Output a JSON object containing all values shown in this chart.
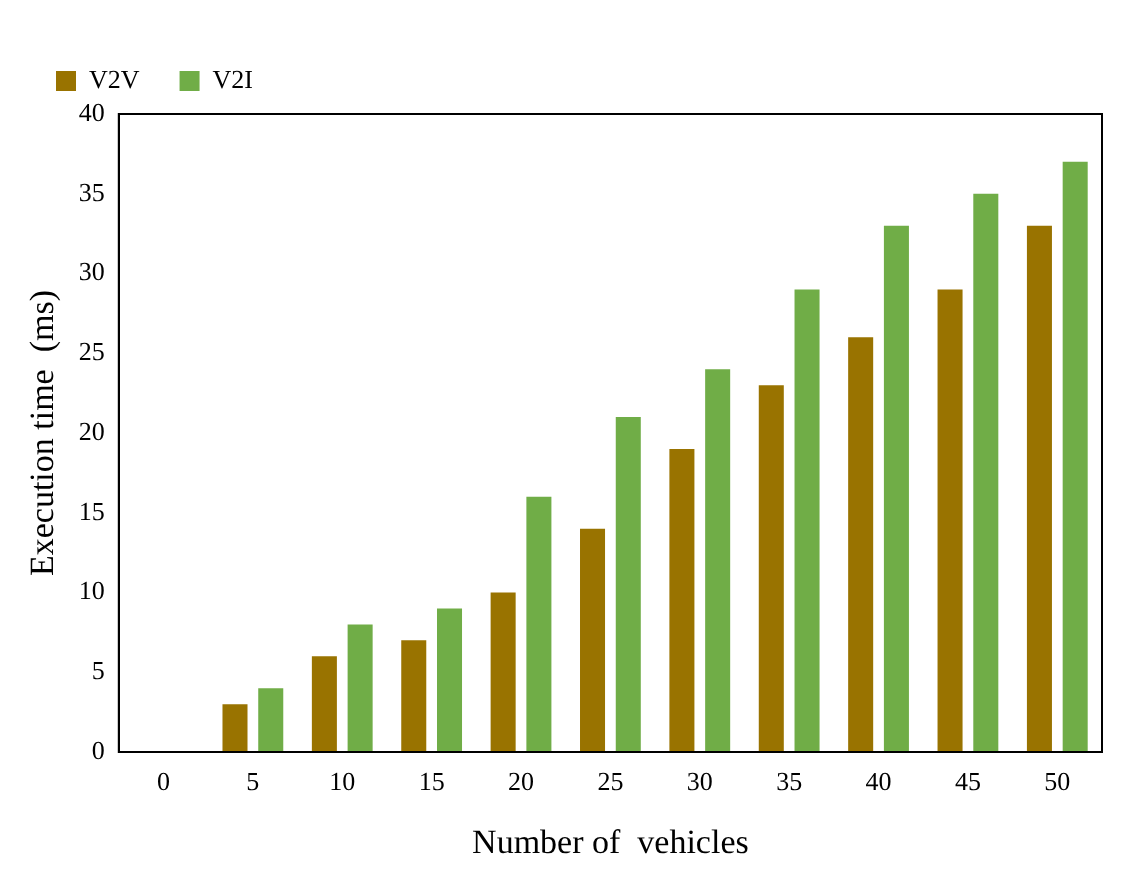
{
  "chart_data": {
    "type": "bar",
    "xlabel": "Number of  vehicles",
    "ylabel": "Execution time  (ms)",
    "categories": [
      "0",
      "5",
      "10",
      "15",
      "20",
      "25",
      "30",
      "35",
      "40",
      "45",
      "50"
    ],
    "series": [
      {
        "name": "V2V",
        "color": "#997300",
        "values": [
          0,
          3,
          6,
          7,
          10,
          14,
          19,
          23,
          26,
          29,
          33
        ]
      },
      {
        "name": "V2I",
        "color": "#70ad47",
        "values": [
          0,
          4,
          8,
          9,
          16,
          21,
          24,
          29,
          33,
          35,
          37
        ]
      }
    ],
    "ylim": [
      0,
      40
    ],
    "yticks": [
      0,
      5,
      10,
      15,
      20,
      25,
      30,
      35,
      40
    ],
    "grid": false,
    "legend": "top left"
  }
}
